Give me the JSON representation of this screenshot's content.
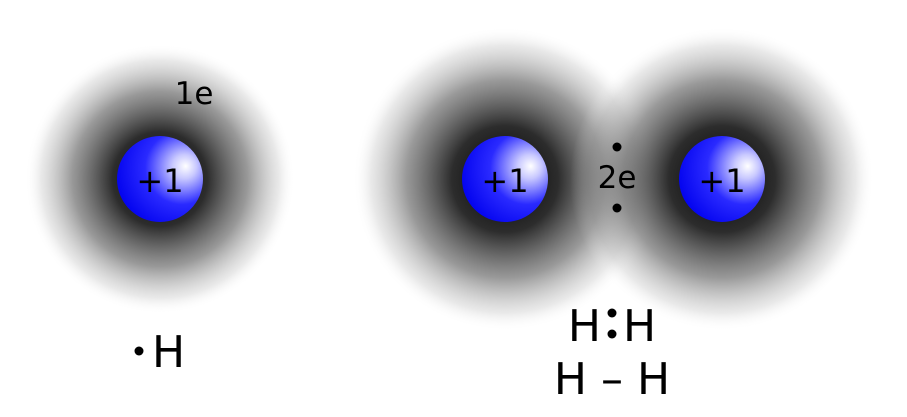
{
  "atom": {
    "nucleus_label": "+1",
    "electron_label": "1e",
    "symbol": "H"
  },
  "molecule": {
    "nucleus_label_left": "+1",
    "nucleus_label_right": "+1",
    "electron_label": "2e",
    "lewis_left": "H",
    "lewis_right": "H",
    "line_formula": "H – H"
  },
  "colors": {
    "nucleus": "#0000ff",
    "nucleus_highlight": "#ffffff",
    "cloud": "#000000",
    "background": "#ffffff"
  }
}
